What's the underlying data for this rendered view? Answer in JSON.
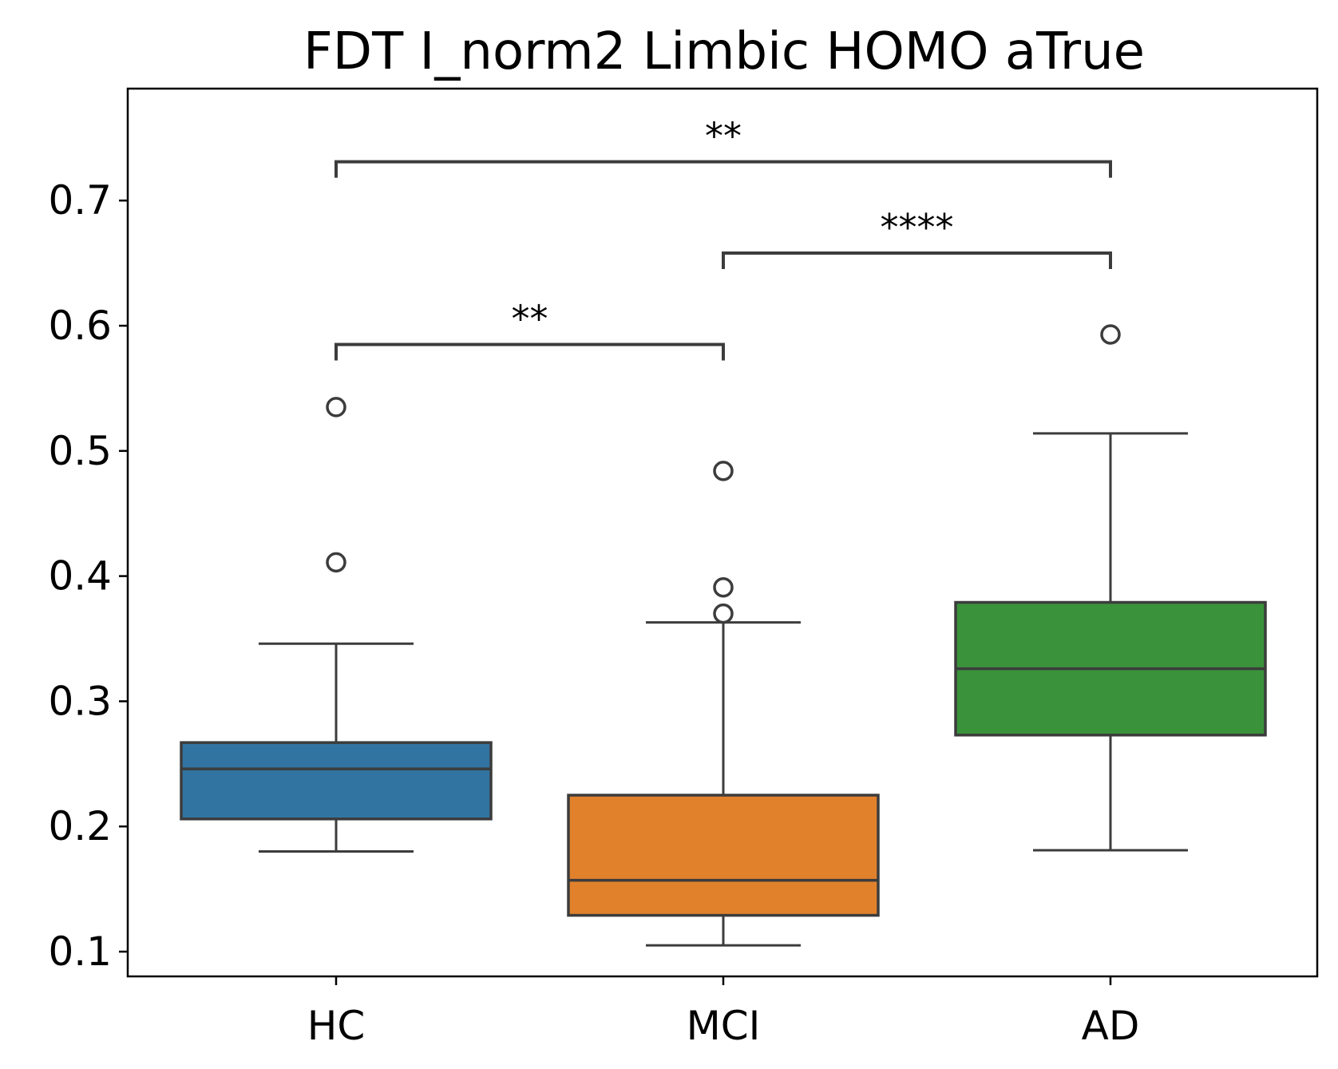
{
  "chart_data": {
    "type": "box",
    "title": "FDT I_norm2 Limbic HOMO aTrue",
    "xlabel": "",
    "ylabel": "",
    "categories": [
      "HC",
      "MCI",
      "AD"
    ],
    "yticks": [
      0.1,
      0.2,
      0.3,
      0.4,
      0.5,
      0.6,
      0.7
    ],
    "ytick_labels": [
      "0.1",
      "0.2",
      "0.3",
      "0.4",
      "0.5",
      "0.6",
      "0.7"
    ],
    "ylim": [
      0.08,
      0.79
    ],
    "grid": false,
    "boxes": [
      {
        "category": "HC",
        "color": "#3274a1",
        "whisker_low": 0.18,
        "q1": 0.206,
        "median": 0.246,
        "q3": 0.267,
        "whisker_high": 0.346,
        "outliers": [
          0.411,
          0.535
        ]
      },
      {
        "category": "MCI",
        "color": "#e1812c",
        "whisker_low": 0.105,
        "q1": 0.129,
        "median": 0.157,
        "q3": 0.225,
        "whisker_high": 0.363,
        "outliers": [
          0.37,
          0.391,
          0.484
        ]
      },
      {
        "category": "AD",
        "color": "#3a923a",
        "whisker_low": 0.181,
        "q1": 0.273,
        "median": 0.326,
        "q3": 0.379,
        "whisker_high": 0.514,
        "outliers": [
          0.593
        ]
      }
    ],
    "annotations": [
      {
        "from": "HC",
        "to": "MCI",
        "label": "**",
        "y": 0.585
      },
      {
        "from": "MCI",
        "to": "AD",
        "label": "****",
        "y": 0.658
      },
      {
        "from": "HC",
        "to": "AD",
        "label": "**",
        "y": 0.731
      }
    ]
  }
}
